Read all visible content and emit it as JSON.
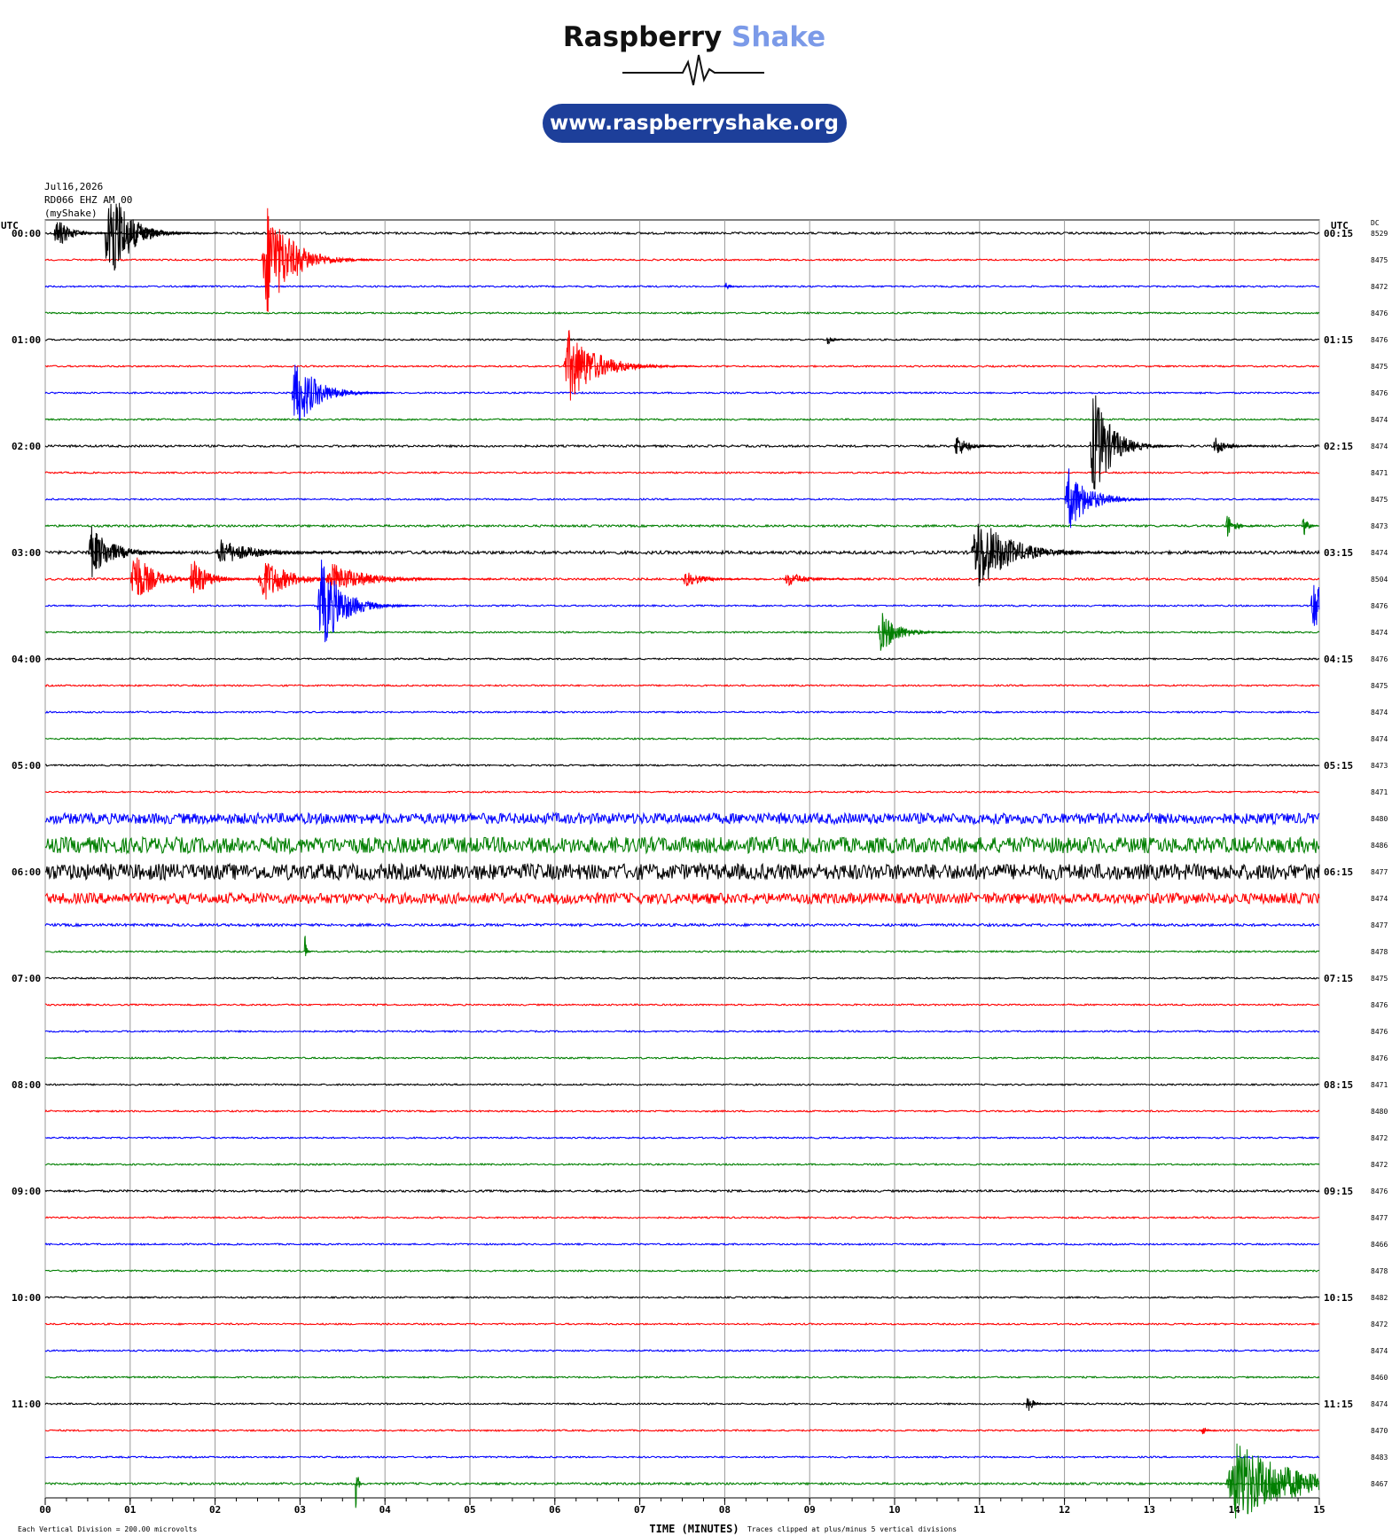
{
  "header": {
    "brand1": "Raspberry",
    "brand2": "Shake",
    "url": "www.raspberryshake.org"
  },
  "chart_data": {
    "type": "helicorder",
    "title_lines": [
      "Jul16,2026",
      "RD066 EHZ AM 00",
      "(myShake)"
    ],
    "left_axis_label": "UTC",
    "right_axis_label": "UTC",
    "dc_label": "DC",
    "xlim": [
      0,
      15
    ],
    "xticks": [
      {
        "value": 0,
        "label": "00"
      },
      {
        "value": 1,
        "label": "01"
      },
      {
        "value": 2,
        "label": "02"
      },
      {
        "value": 3,
        "label": "03"
      },
      {
        "value": 4,
        "label": "04"
      },
      {
        "value": 5,
        "label": "05"
      },
      {
        "value": 6,
        "label": "06"
      },
      {
        "value": 7,
        "label": "07"
      },
      {
        "value": 8,
        "label": "08"
      },
      {
        "value": 9,
        "label": "09"
      },
      {
        "value": 10,
        "label": "10"
      },
      {
        "value": 11,
        "label": "11"
      },
      {
        "value": 12,
        "label": "12"
      },
      {
        "value": 13,
        "label": "13"
      },
      {
        "value": 14,
        "label": "14"
      },
      {
        "value": 15,
        "label": "15"
      }
    ],
    "xlabel": "TIME (MINUTES)",
    "scale_note": "Each Vertical Division =  200.00 microvolts",
    "clip_note": "Traces clipped at plus/minus 5 vertical divisions",
    "clip": 5,
    "row_colors": [
      "#000000",
      "#ff0000",
      "#0000ff",
      "#007f00"
    ],
    "row_labels_left": [
      "00:00",
      null,
      null,
      null,
      "01:00",
      null,
      null,
      null,
      "02:00",
      null,
      null,
      null,
      "03:00",
      null,
      null,
      null,
      "04:00",
      null,
      null,
      null,
      "05:00",
      null,
      null,
      null,
      "06:00",
      null,
      null,
      null,
      "07:00",
      null,
      null,
      null,
      "08:00",
      null,
      null,
      null,
      "09:00",
      null,
      null,
      null,
      "10:00",
      null,
      null,
      null,
      "11:00",
      null,
      null,
      null
    ],
    "row_labels_right": [
      "00:15",
      null,
      null,
      null,
      "01:15",
      null,
      null,
      null,
      "02:15",
      null,
      null,
      null,
      "03:15",
      null,
      null,
      null,
      "04:15",
      null,
      null,
      null,
      "05:15",
      null,
      null,
      null,
      "06:15",
      null,
      null,
      null,
      "07:15",
      null,
      null,
      null,
      "08:15",
      null,
      null,
      null,
      "09:15",
      null,
      null,
      null,
      "10:15",
      null,
      null,
      null,
      "11:15",
      null,
      null,
      null
    ],
    "dc": [
      8529,
      8475,
      8472,
      8476,
      8476,
      8475,
      8476,
      8474,
      8474,
      8471,
      8475,
      8473,
      8474,
      8504,
      8476,
      8474,
      8476,
      8475,
      8474,
      8474,
      8473,
      8471,
      8480,
      8486,
      8477,
      8474,
      8477,
      8478,
      8475,
      8476,
      8476,
      8476,
      8471,
      8480,
      8472,
      8472,
      8476,
      8477,
      8466,
      8478,
      8482,
      8472,
      8474,
      8460,
      8474,
      8470,
      8483,
      8467
    ],
    "noise": [
      0.04,
      0.03,
      0.03,
      0.03,
      0.03,
      0.03,
      0.03,
      0.03,
      0.04,
      0.03,
      0.03,
      0.04,
      0.06,
      0.04,
      0.03,
      0.03,
      0.03,
      0.03,
      0.03,
      0.03,
      0.03,
      0.03,
      0.2,
      0.3,
      0.3,
      0.2,
      0.05,
      0.03,
      0.03,
      0.03,
      0.03,
      0.03,
      0.03,
      0.03,
      0.03,
      0.03,
      0.04,
      0.03,
      0.03,
      0.03,
      0.03,
      0.03,
      0.03,
      0.03,
      0.03,
      0.03,
      0.03,
      0.04
    ],
    "events": [
      {
        "row": 0,
        "minute": 0.1,
        "amplitude": 0.6,
        "duration": 0.4
      },
      {
        "row": 0,
        "minute": 0.7,
        "amplitude": 2.6,
        "duration": 0.5
      },
      {
        "row": 0,
        "minute": 1.1,
        "amplitude": 0.3,
        "duration": 0.5
      },
      {
        "row": 1,
        "minute": 2.55,
        "amplitude": 2.2,
        "duration": 0.7
      },
      {
        "row": 2,
        "minute": 8.0,
        "amplitude": 0.2,
        "duration": 0.1
      },
      {
        "row": 4,
        "minute": 9.2,
        "amplitude": 0.2,
        "duration": 0.15
      },
      {
        "row": 5,
        "minute": 6.1,
        "amplitude": 1.4,
        "duration": 0.8
      },
      {
        "row": 6,
        "minute": 2.9,
        "amplitude": 1.4,
        "duration": 0.6
      },
      {
        "row": 8,
        "minute": 10.7,
        "amplitude": 0.5,
        "duration": 0.3
      },
      {
        "row": 8,
        "minute": 12.3,
        "amplitude": 2.2,
        "duration": 0.5
      },
      {
        "row": 8,
        "minute": 13.75,
        "amplitude": 0.4,
        "duration": 0.3
      },
      {
        "row": 10,
        "minute": 12.0,
        "amplitude": 1.2,
        "duration": 0.6
      },
      {
        "row": 11,
        "minute": 13.9,
        "amplitude": 0.5,
        "duration": 0.2
      },
      {
        "row": 11,
        "minute": 14.8,
        "amplitude": 0.6,
        "duration": 0.1
      },
      {
        "row": 12,
        "minute": 0.5,
        "amplitude": 1.0,
        "duration": 0.6
      },
      {
        "row": 12,
        "minute": 2.0,
        "amplitude": 0.5,
        "duration": 0.9
      },
      {
        "row": 12,
        "minute": 10.9,
        "amplitude": 1.5,
        "duration": 0.9
      },
      {
        "row": 13,
        "minute": 1.0,
        "amplitude": 1.2,
        "duration": 0.5
      },
      {
        "row": 13,
        "minute": 1.7,
        "amplitude": 0.9,
        "duration": 0.4
      },
      {
        "row": 13,
        "minute": 2.5,
        "amplitude": 0.9,
        "duration": 0.7
      },
      {
        "row": 13,
        "minute": 3.3,
        "amplitude": 0.6,
        "duration": 1.0
      },
      {
        "row": 13,
        "minute": 7.5,
        "amplitude": 0.3,
        "duration": 0.5
      },
      {
        "row": 13,
        "minute": 8.7,
        "amplitude": 0.3,
        "duration": 0.5
      },
      {
        "row": 14,
        "minute": 3.2,
        "amplitude": 1.8,
        "duration": 0.6
      },
      {
        "row": 14,
        "minute": 14.9,
        "amplitude": 1.3,
        "duration": 0.4
      },
      {
        "row": 15,
        "minute": 9.8,
        "amplitude": 0.8,
        "duration": 0.5
      },
      {
        "row": 27,
        "minute": 3.05,
        "amplitude": 0.9,
        "duration": 0.05
      },
      {
        "row": 44,
        "minute": 11.55,
        "amplitude": 0.4,
        "duration": 0.15
      },
      {
        "row": 45,
        "minute": 13.6,
        "amplitude": 0.3,
        "duration": 0.1
      },
      {
        "row": 47,
        "minute": 3.65,
        "amplitude": 1.3,
        "duration": 0.05
      },
      {
        "row": 47,
        "minute": 13.9,
        "amplitude": 1.6,
        "duration": 1.6
      }
    ]
  }
}
